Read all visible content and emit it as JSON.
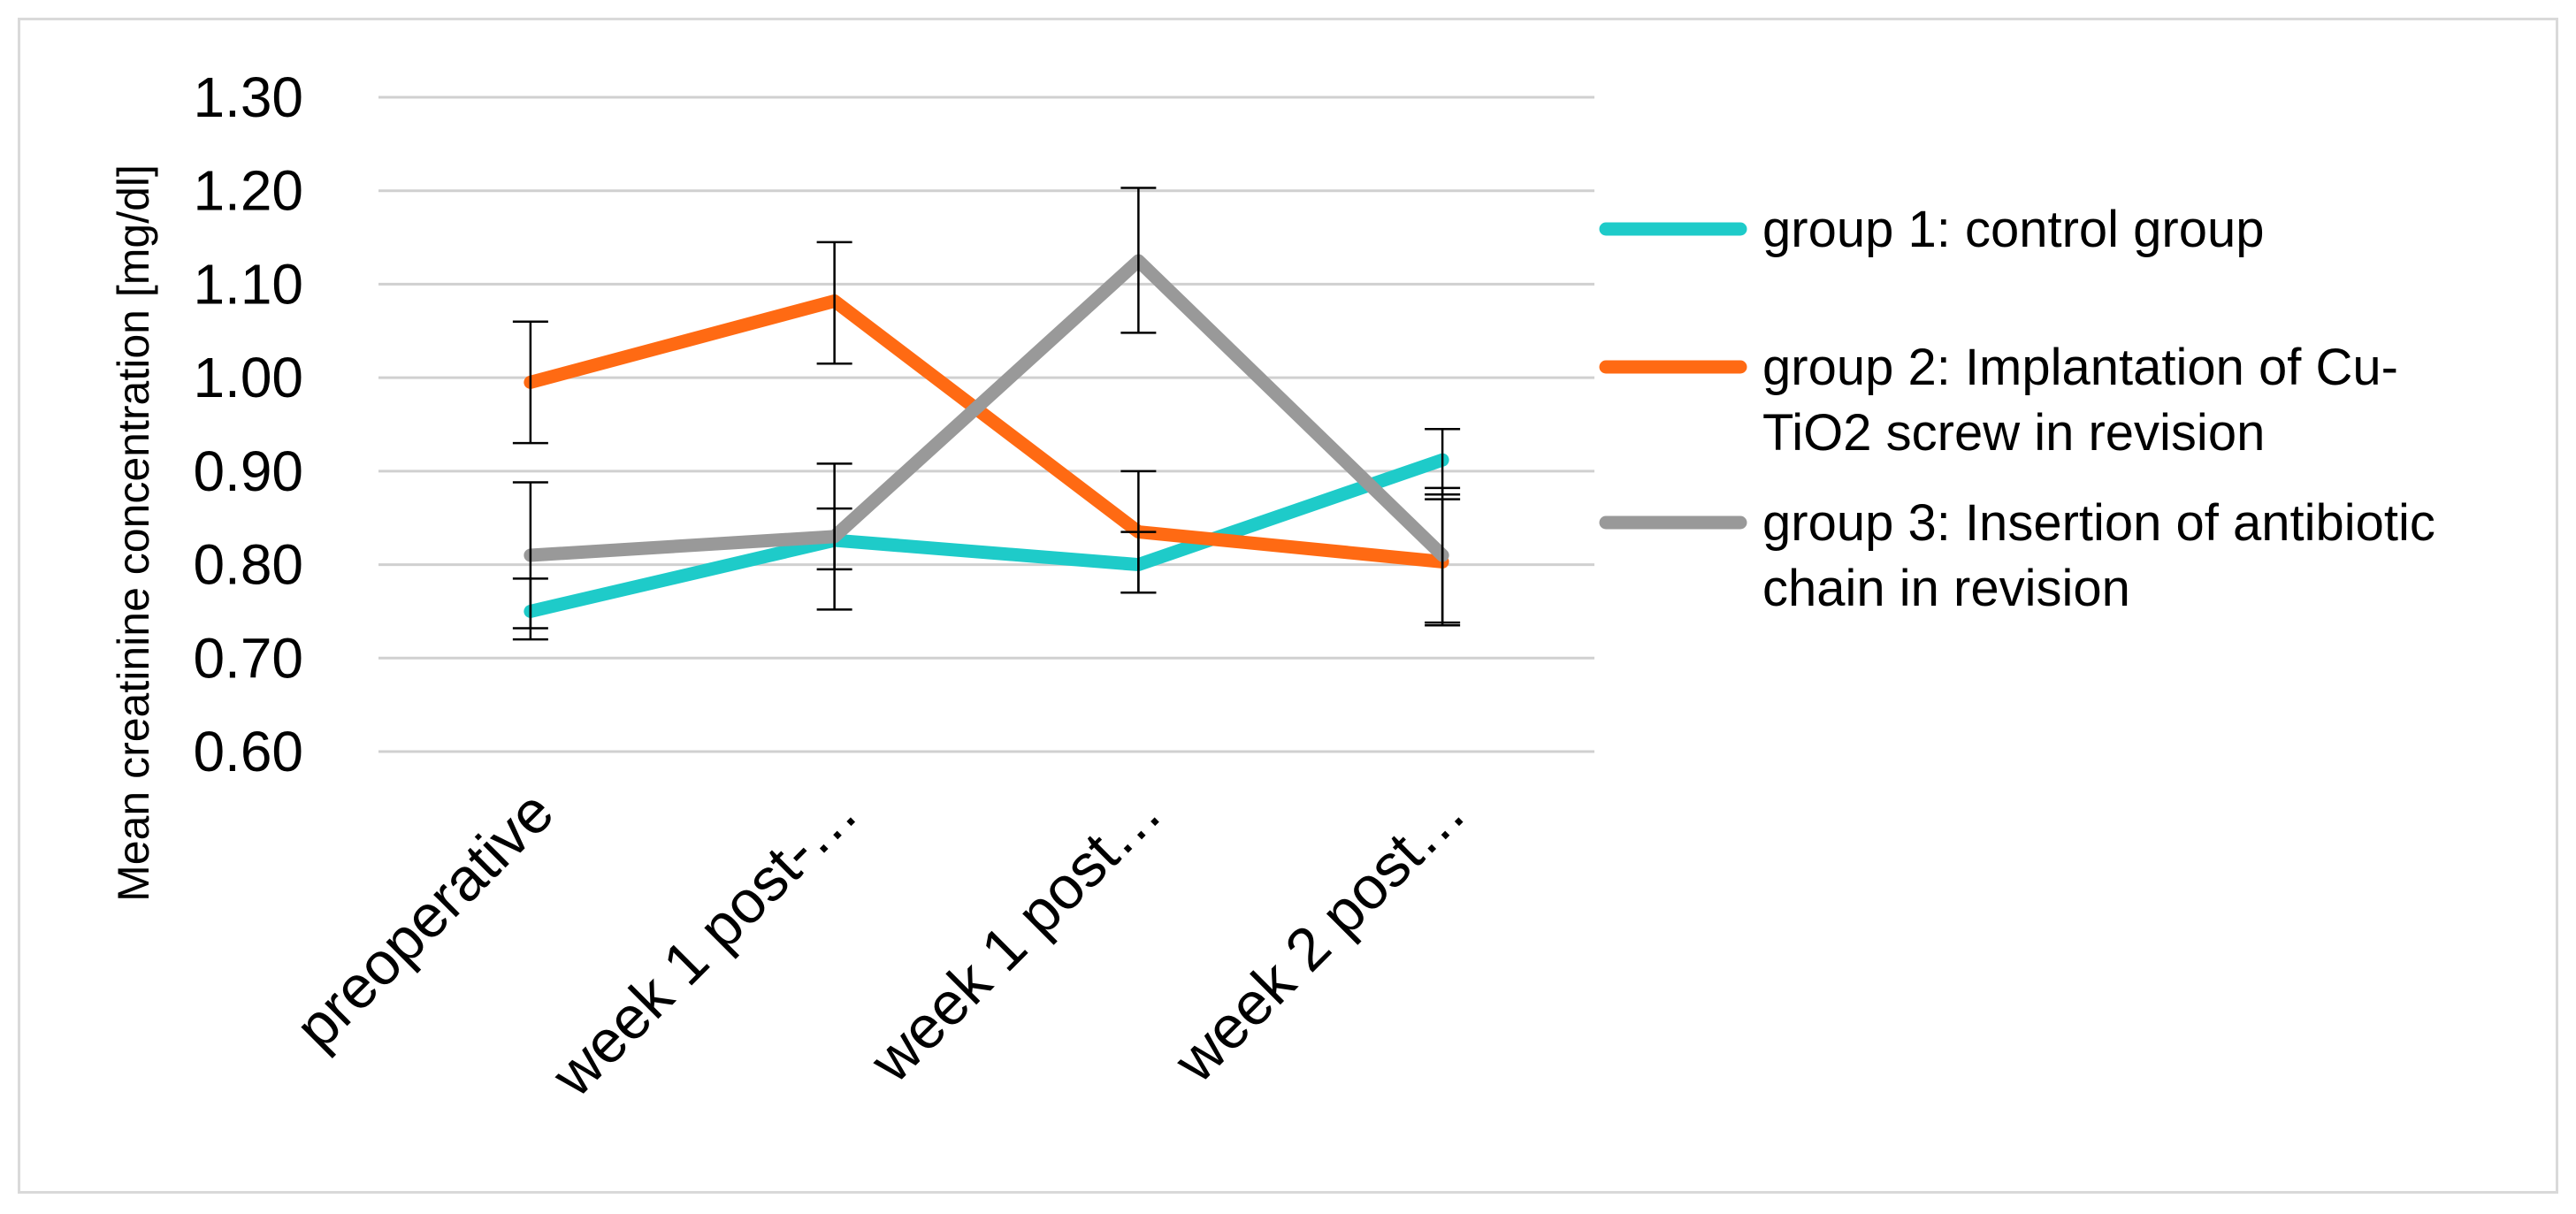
{
  "chart_data": {
    "type": "line",
    "title": "",
    "xlabel": "",
    "ylabel": "Mean creatinine concentration [mg/dl]",
    "ylim": [
      0.6,
      1.3
    ],
    "yticks": [
      "1.30",
      "1.20",
      "1.10",
      "1.00",
      "0.90",
      "0.80",
      "0.70",
      "0.60"
    ],
    "ytick_values": [
      1.3,
      1.2,
      1.1,
      1.0,
      0.9,
      0.8,
      0.7,
      0.6
    ],
    "grid": true,
    "legend_position": "right",
    "categories": [
      "preoperative",
      "week 1 post-…",
      "week 1 post…",
      "week 2 post…"
    ],
    "series": [
      {
        "name": "group 1: control group",
        "legend_lines": [
          "group 1: control group"
        ],
        "color": "#1ECBC9",
        "values": [
          0.75,
          0.826,
          0.8,
          0.912
        ],
        "error_low": [
          0.72,
          0.795,
          0.77,
          0.875
        ],
        "error_high": [
          0.785,
          0.86,
          0.835,
          0.945
        ]
      },
      {
        "name": "group 2: Implantation of Cu-TiO2 screw in revision",
        "legend_lines": [
          "group 2: Implantation of Cu-",
          "TiO2 screw in revision"
        ],
        "color": "#FF6A13",
        "values": [
          0.995,
          1.082,
          0.835,
          0.803
        ],
        "error_low": [
          0.93,
          1.015,
          0.77,
          0.735
        ],
        "error_high": [
          1.06,
          1.145,
          0.9,
          0.87
        ]
      },
      {
        "name": "group 3: Insertion of antibiotic chain in revision",
        "legend_lines": [
          "group 3: Insertion of antibiotic",
          "chain in revision"
        ],
        "color": "#999999",
        "values": [
          0.81,
          0.83,
          1.125,
          0.81
        ],
        "error_low": [
          0.732,
          0.752,
          1.048,
          0.738
        ],
        "error_high": [
          0.888,
          0.908,
          1.203,
          0.882
        ]
      }
    ]
  }
}
